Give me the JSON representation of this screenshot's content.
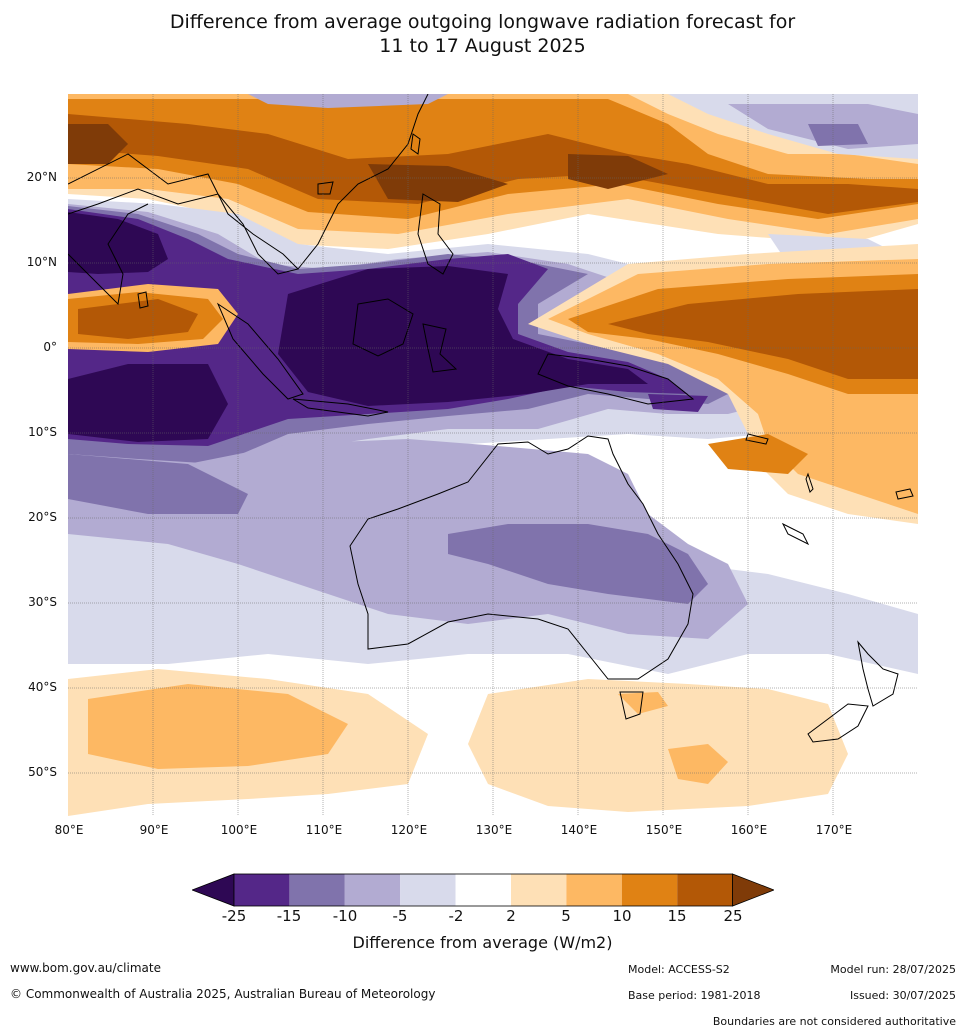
{
  "title": {
    "line1": "Difference from average outgoing longwave radiation forecast for",
    "line2": "11 to 17 August 2025"
  },
  "map": {
    "lat_labels": [
      "20°N",
      "10°N",
      "0°",
      "10°S",
      "20°S",
      "30°S",
      "40°S",
      "50°S"
    ],
    "lon_labels": [
      "80°E",
      "90°E",
      "100°E",
      "110°E",
      "120°E",
      "130°E",
      "140°E",
      "150°E",
      "160°E",
      "170°E"
    ]
  },
  "colorbar": {
    "ticks": [
      "-25",
      "-15",
      "-10",
      "-5",
      "-2",
      "2",
      "5",
      "10",
      "15",
      "25"
    ],
    "label": "Difference from average (W/m2)",
    "colors": [
      "#2e0854",
      "#542788",
      "#8073ac",
      "#b2abd2",
      "#d8daeb",
      "#ffffff",
      "#fee0b6",
      "#fdb863",
      "#e08214",
      "#b35806",
      "#7f3b08"
    ]
  },
  "footer": {
    "website": "www.bom.gov.au/climate",
    "copyright": "© Commonwealth of Australia 2025, Australian Bureau of Meteorology",
    "model": "Model: ACCESS-S2",
    "base_period": "Base period: 1981-2018",
    "model_run": "Model run: 28/07/2025",
    "issued": "Issued: 30/07/2025",
    "disclaimer": "Boundaries are not considered authoritative"
  }
}
